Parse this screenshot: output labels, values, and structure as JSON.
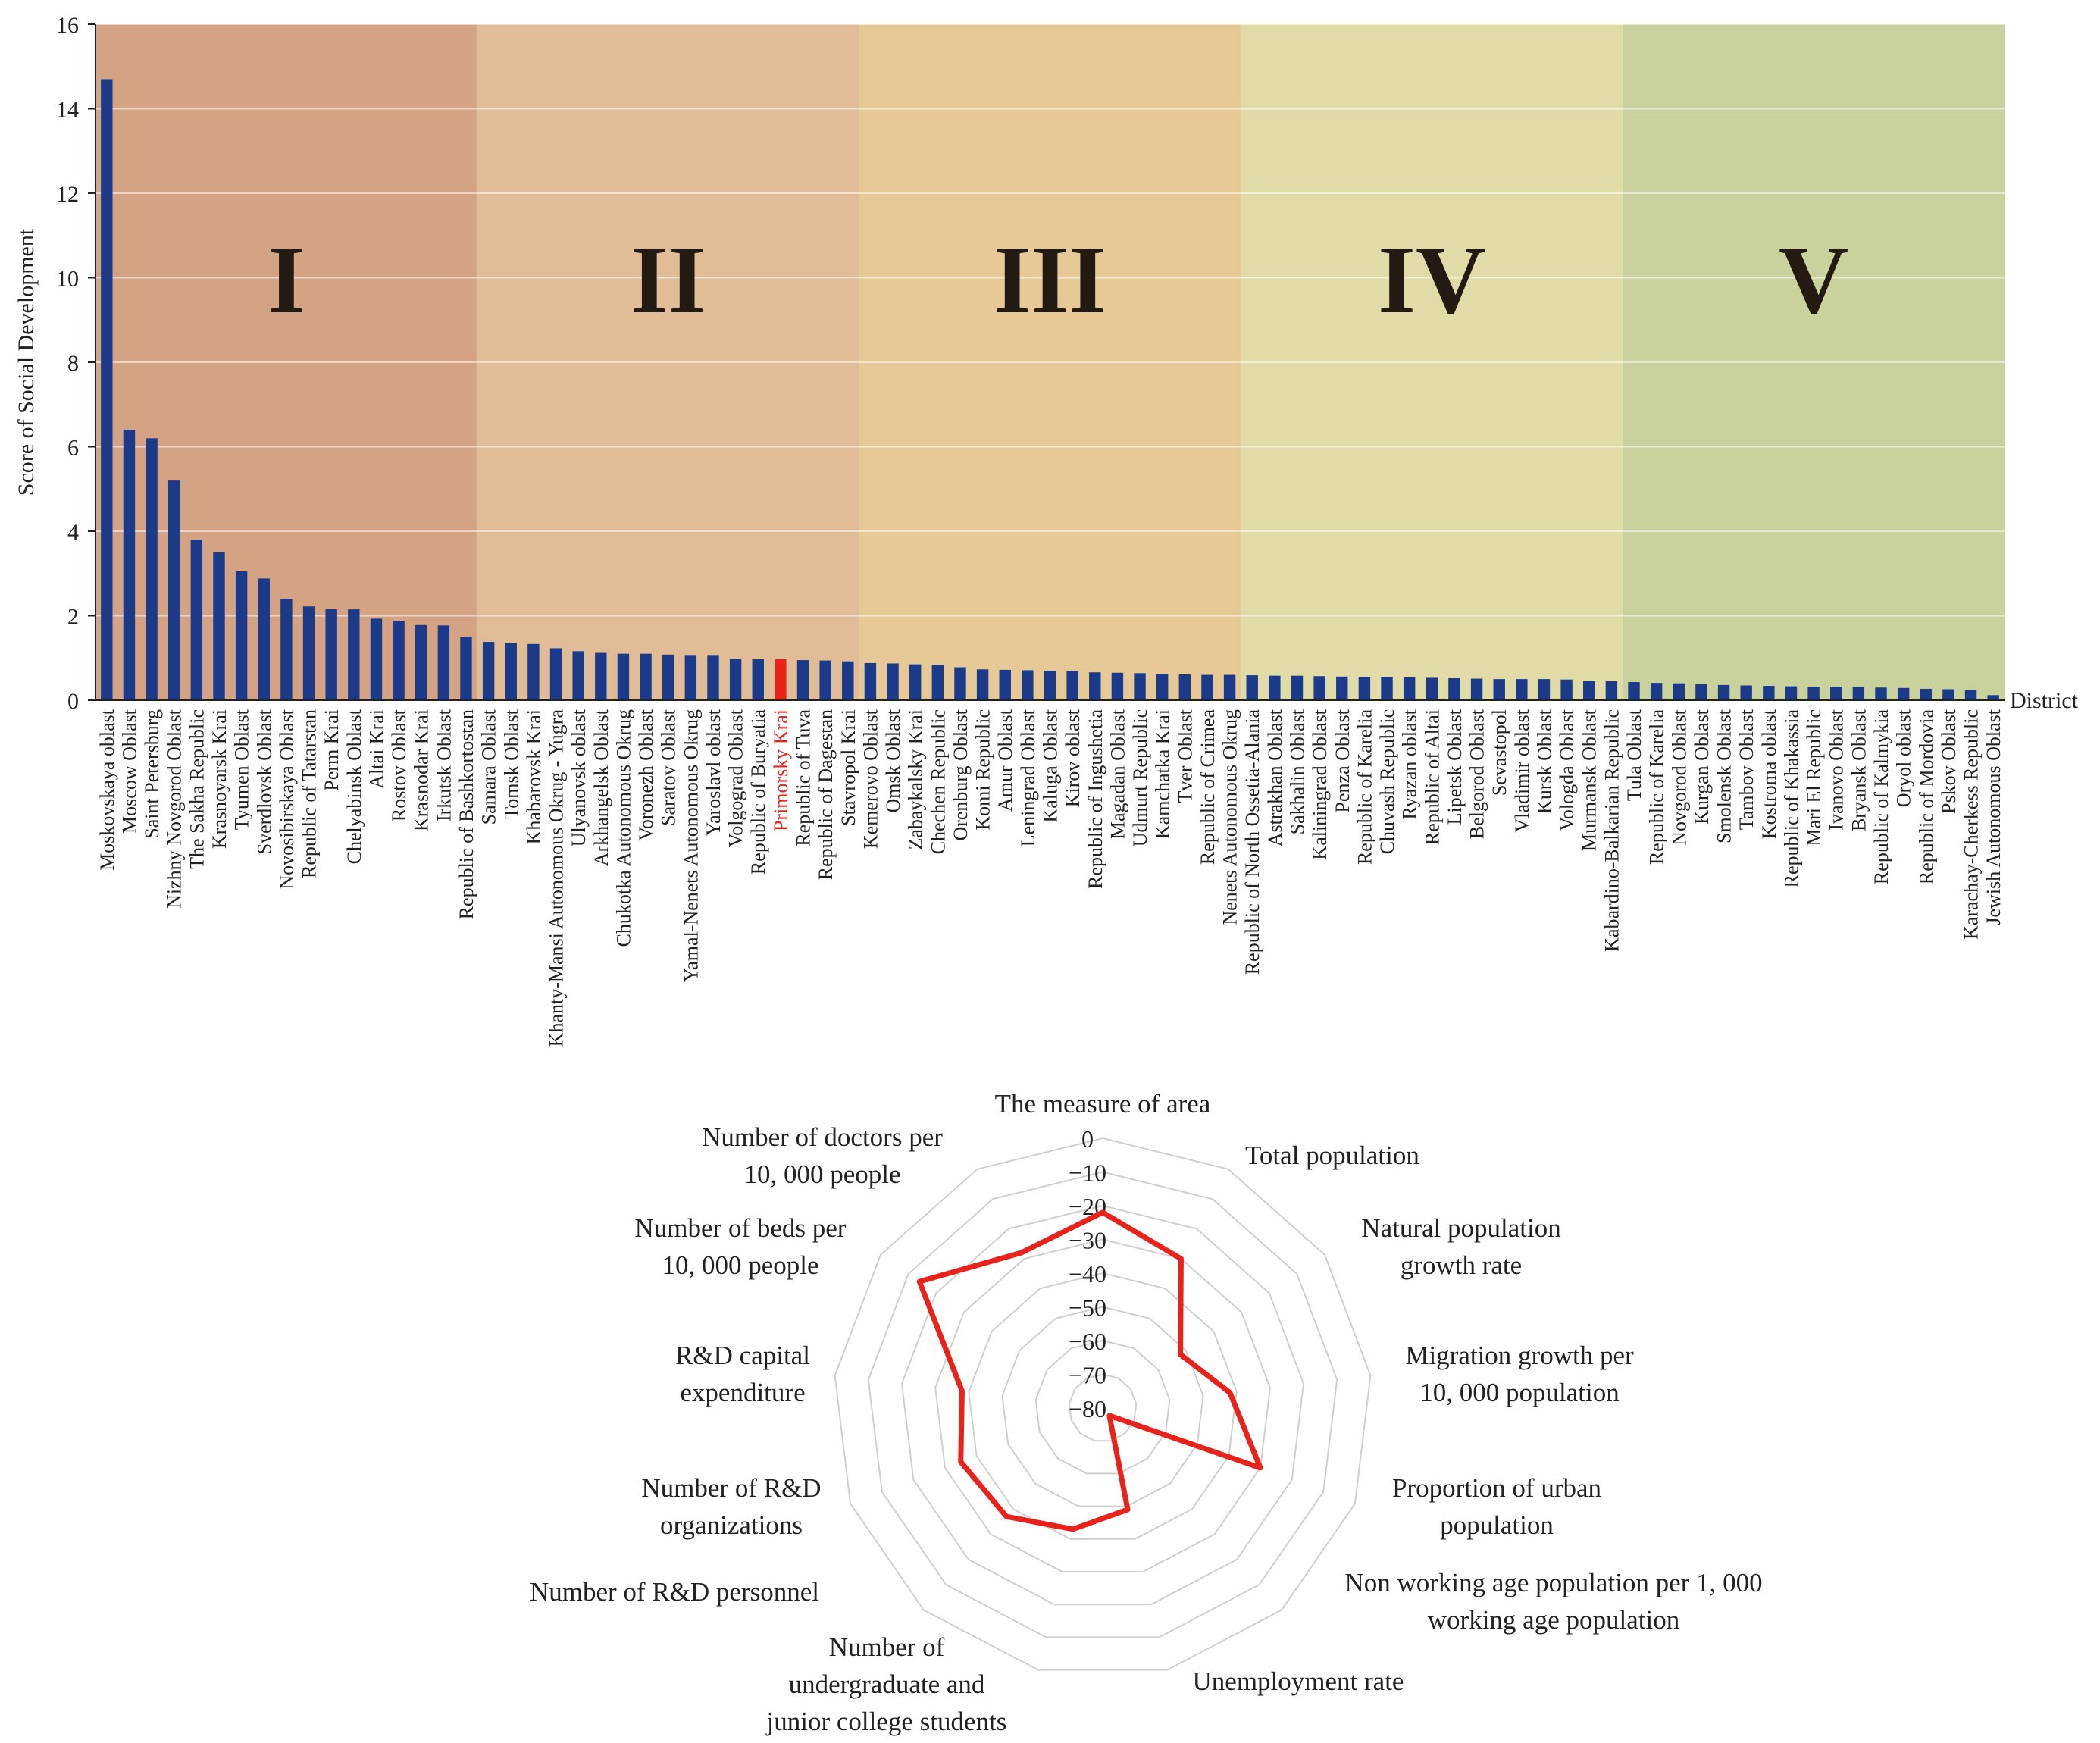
{
  "chart_data": [
    {
      "type": "bar",
      "title": "",
      "ylabel": "Score of Social Development",
      "xlabel": "District",
      "ylim": [
        0,
        16
      ],
      "yticks": [
        "0",
        "2",
        "4",
        "6",
        "8",
        "10",
        "12",
        "14",
        "16"
      ],
      "grid": true,
      "bar_color": "#1c3a8a",
      "highlight_color": "#e8231c",
      "highlight_category": "Primorsky Krai",
      "groups": [
        {
          "label": "I",
          "start": 0,
          "end": 16,
          "color": "#d4a384"
        },
        {
          "label": "II",
          "start": 17,
          "end": 33,
          "color": "#e0bd97"
        },
        {
          "label": "III",
          "start": 34,
          "end": 50,
          "color": "#e6c997"
        },
        {
          "label": "IV",
          "start": 51,
          "end": 67,
          "color": "#e1dba8"
        },
        {
          "label": "V",
          "start": 68,
          "end": 84,
          "color": "#c9d19c"
        }
      ],
      "categories": [
        "Moskovskaya oblast",
        "Moscow Oblast",
        "Saint Petersburg",
        "Nizhny Novgorod Oblast",
        "The Sakha Republic",
        "Krasnoyarsk Krai",
        "Tyumen Oblast",
        "Sverdlovsk Oblast",
        "Novosibirskaya Oblast",
        "Republic of Tatarstan",
        "Perm Krai",
        "Chelyabinsk Oblast",
        "Altai Krai",
        "Rostov Oblast",
        "Krasnodar Krai",
        "Irkutsk Oblast",
        "Republic of Bashkortostan",
        "Samara Oblast",
        "Tomsk Oblast",
        "Khabarovsk Krai",
        "Khanty-Mansi Autonomous Okrug - Yugra",
        "Ulyanovsk oblast",
        "Arkhangelsk Oblast",
        "Chukotka Autonomous Okrug",
        "Voronezh Oblast",
        "Saratov Oblast",
        "Yamal-Nenets Autonomous Okrug",
        "Yaroslavl oblast",
        "Volgograd Oblast",
        "Republic of Buryatia",
        "Primorsky Krai",
        "Republic of Tuva",
        "Republic of Dagestan",
        "Stavropol Krai",
        "Kemerovo Oblast",
        "Omsk Oblast",
        "Zabaykalsky Krai",
        "Chechen Republic",
        "Orenburg Oblast",
        "Komi Republic",
        "Amur Oblast",
        "Leningrad Oblast",
        "Kaluga Oblast",
        "Kirov oblast",
        "Republic of Ingushetia",
        "Magadan Oblast",
        "Udmurt Republic",
        "Kamchatka Krai",
        "Tver Oblast",
        "Republic of Crimea",
        "Nenets Autonomous Okrug",
        "Republic of North Ossetia-Alania",
        "Astrakhan Oblast",
        "Sakhalin Oblast",
        "Kaliningrad Oblast",
        "Penza Oblast",
        "Republic of Karelia",
        "Chuvash Republic",
        "Ryazan oblast",
        "Republic of Altai",
        "Lipetsk Oblast",
        "Belgorod Oblast",
        "Sevastopol",
        "Vladimir oblast",
        "Kursk Oblast",
        "Vologda Oblast",
        "Murmansk Oblast",
        "Kabardino-Balkarian Republic",
        "Tula Oblast",
        "Republic of Karelia",
        "Novgorod Oblast",
        "Kurgan Oblast",
        "Smolensk Oblast",
        "Tambov Oblast",
        "Kostroma oblast",
        "Republic of Khakassia",
        "Mari El Republic",
        "Ivanovo Oblast",
        "Bryansk Oblast",
        "Republic of Kalmykia",
        "Oryol oblast",
        "Republic of Mordovia",
        "Pskov Oblast",
        "Karachay-Cherkess Republic",
        "Jewish Autonomous Oblast"
      ],
      "values": [
        14.7,
        6.4,
        6.2,
        5.2,
        3.8,
        3.5,
        3.05,
        2.88,
        2.4,
        2.22,
        2.16,
        2.15,
        1.93,
        1.88,
        1.78,
        1.77,
        1.5,
        1.38,
        1.35,
        1.33,
        1.23,
        1.16,
        1.12,
        1.1,
        1.1,
        1.08,
        1.07,
        1.07,
        0.98,
        0.97,
        0.97,
        0.95,
        0.94,
        0.92,
        0.88,
        0.87,
        0.85,
        0.84,
        0.78,
        0.73,
        0.72,
        0.71,
        0.7,
        0.69,
        0.66,
        0.65,
        0.64,
        0.62,
        0.61,
        0.6,
        0.6,
        0.59,
        0.58,
        0.58,
        0.57,
        0.56,
        0.55,
        0.55,
        0.54,
        0.53,
        0.52,
        0.51,
        0.5,
        0.5,
        0.5,
        0.49,
        0.46,
        0.45,
        0.43,
        0.41,
        0.4,
        0.38,
        0.36,
        0.35,
        0.34,
        0.33,
        0.32,
        0.32,
        0.31,
        0.3,
        0.29,
        0.27,
        0.26,
        0.24,
        0.12
      ]
    },
    {
      "type": "radar",
      "title": "",
      "range": [
        -80,
        0
      ],
      "rings": [
        "0",
        "−10",
        "−20",
        "−30",
        "−40",
        "−50",
        "−60",
        "−70",
        "−80"
      ],
      "line_color": "#e8231c",
      "axes": [
        {
          "lines": [
            "The measure of area"
          ],
          "value": -22
        },
        {
          "lines": [
            "Total population"
          ],
          "value": -30
        },
        {
          "lines": [
            "Natural population",
            "growth rate"
          ],
          "value": -52
        },
        {
          "lines": [
            "Migration growth per",
            "10, 000 population"
          ],
          "value": -42
        },
        {
          "lines": [
            "Proportion of urban",
            "population"
          ],
          "value": -30
        },
        {
          "lines": [
            "Non working age    population per 1, 000",
            "working age population"
          ],
          "value": -77
        },
        {
          "lines": [
            "Unemployment rate"
          ],
          "value": -49
        },
        {
          "lines": [
            "Number of",
            "undergraduate and",
            "junior college students"
          ],
          "value": -43
        },
        {
          "lines": [
            "Number of R&D    personnel"
          ],
          "value": -37
        },
        {
          "lines": [
            "Number of R&D",
            "organizations"
          ],
          "value": -35
        },
        {
          "lines": [
            "R&D capital",
            "expenditure"
          ],
          "value": -38
        },
        {
          "lines": [
            "Number of beds per",
            "10, 000 people"
          ],
          "value": -14
        },
        {
          "lines": [
            "Number of doctors per",
            "10, 000 people"
          ],
          "value": -28
        }
      ]
    }
  ]
}
